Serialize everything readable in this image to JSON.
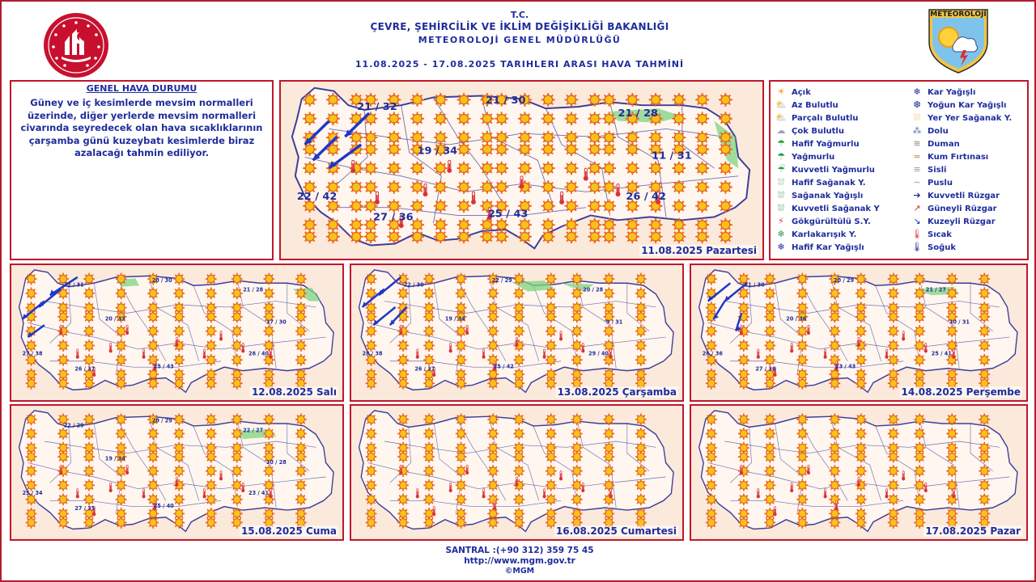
{
  "header": {
    "line1": "T.C.",
    "line2": "ÇEVRE, ŞEHİRCİLİK VE İKLİM DEĞİŞİKLİĞİ BAKANLIĞI",
    "line3": "METEOROLOJİ  GENEL  MÜDÜRLÜĞÜ",
    "date_range": "11.08.2025   -   17.08.2025    TARIHLERI  ARASI  HAVA  TAHMİNİ",
    "mgm_logo_text": "METEOROLOJİ"
  },
  "general_status": {
    "title": "GENEL HAVA DURUMU",
    "body": "Güney ve iç kesimlerde mevsim normalleri üzerinde, diğer yerlerde mevsim normalleri civarında seyredecek olan hava sıcaklıklarının çarşamba günü kuzeybatı kesimlerde biraz azalacağı tahmin ediliyor."
  },
  "maps": {
    "mon": {
      "date": "11.08.2025 Pazartesi",
      "labels": {
        "nw": "21 / 32",
        "n": "21 / 30",
        "ne": "21 / 28",
        "w": "22 / 42",
        "c": "19 / 34",
        "e": "11 / 31",
        "sw": "27 / 36",
        "s": "25 / 43",
        "se": "26 / 42"
      }
    },
    "tue": {
      "date": "12.08.2025 Salı",
      "labels": {
        "nw": "22 / 31",
        "n": "20 / 30",
        "ne": "21 / 28",
        "w": "27 / 38",
        "c": "20 / 33",
        "e": "17 / 30",
        "sw": "26 / 37",
        "s": "25 / 43",
        "se": "26 / 40"
      }
    },
    "wed": {
      "date": "13.08.2025 Çarşamba",
      "labels": {
        "nw": "22 / 30",
        "n": "22 / 29",
        "ne": "20 / 28",
        "w": "28 / 38",
        "c": "19 / 34",
        "e": "9 / 31",
        "sw": "26 / 37",
        "s": "25 / 42",
        "se": "29 / 40"
      }
    },
    "thu": {
      "date": "14.08.2025 Perşembe",
      "labels": {
        "nw": "21 / 30",
        "n": "20 / 29",
        "ne": "21 / 27",
        "w": "26 / 36",
        "c": "20 / 36",
        "e": "10 / 31",
        "sw": "27 / 36",
        "s": "23 / 43",
        "se": "25 / 41"
      }
    },
    "fri": {
      "date": "15.08.2025 Cuma",
      "labels": {
        "nw": "22 / 29",
        "n": "20 / 29",
        "ne": "22 / 27",
        "w": "25 / 34",
        "c": "19 / 34",
        "e": "10 / 28",
        "sw": "27 / 35",
        "s": "25 / 40",
        "se": "23 / 41"
      }
    },
    "sat": {
      "date": "16.08.2025 Cumartesi"
    },
    "sun": {
      "date": "17.08.2025 Pazar"
    }
  },
  "legend": {
    "items": [
      {
        "label": "Açık",
        "icon": "sun-icon"
      },
      {
        "label": "Az Bulutlu",
        "icon": "sun-small-cloud-icon"
      },
      {
        "label": "Parçalı Bulutlu",
        "icon": "sun-cloud-icon"
      },
      {
        "label": "Çok Bulutlu",
        "icon": "cloud-icon"
      },
      {
        "label": "Hafif Yağmurlu",
        "icon": "light-rain-icon"
      },
      {
        "label": "Yağmurlu",
        "icon": "rain-icon"
      },
      {
        "label": "Kuvvetli Yağmurlu",
        "icon": "heavy-rain-icon"
      },
      {
        "label": "Hafif Sağanak Y.",
        "icon": "light-shower-icon"
      },
      {
        "label": "Sağanak Yağışlı",
        "icon": "shower-icon"
      },
      {
        "label": "Kuvvetli Sağanak Y",
        "icon": "heavy-shower-icon"
      },
      {
        "label": "Gökgürültülü S.Y.",
        "icon": "thunderstorm-icon"
      },
      {
        "label": "Karlakarışık Y.",
        "icon": "sleet-icon"
      },
      {
        "label": "Hafif Kar Yağışlı",
        "icon": "light-snow-icon"
      },
      {
        "label": "Kar Yağışlı",
        "icon": "snow-icon"
      },
      {
        "label": "Yoğun Kar Yağışlı",
        "icon": "heavy-snow-icon"
      },
      {
        "label": "Yer Yer Sağanak Y.",
        "icon": "local-shower-icon"
      },
      {
        "label": "Dolu",
        "icon": "hail-icon"
      },
      {
        "label": "Duman",
        "icon": "smoke-icon"
      },
      {
        "label": "Kum Fırtınası",
        "icon": "sandstorm-icon"
      },
      {
        "label": "Sisli",
        "icon": "fog-icon"
      },
      {
        "label": "Puslu",
        "icon": "haze-icon"
      },
      {
        "label": "Kuvvetli Rüzgar",
        "icon": "strong-wind-icon"
      },
      {
        "label": "Güneyli Rüzgar",
        "icon": "south-wind-icon"
      },
      {
        "label": "Kuzeyli Rüzgar",
        "icon": "north-wind-icon"
      },
      {
        "label": "Sıcak",
        "icon": "hot-thermometer-icon"
      },
      {
        "label": "Soğuk",
        "icon": "cold-thermometer-icon"
      }
    ]
  },
  "footer": {
    "phone": "SANTRAL :(+90 312) 359 75 45",
    "url": "http://www.mgm.gov.tr",
    "copyright": "©MGM"
  },
  "colors": {
    "text_blue": "#1f2d9c",
    "border_red": "#c0172c",
    "sun_yellow": "#f7c21b",
    "sun_orange": "#e8641a",
    "map_bg": "#fbe9db",
    "rain_green": "#7fd37f",
    "wind_blue": "#1e37c9",
    "hot_red": "#d9323a"
  }
}
